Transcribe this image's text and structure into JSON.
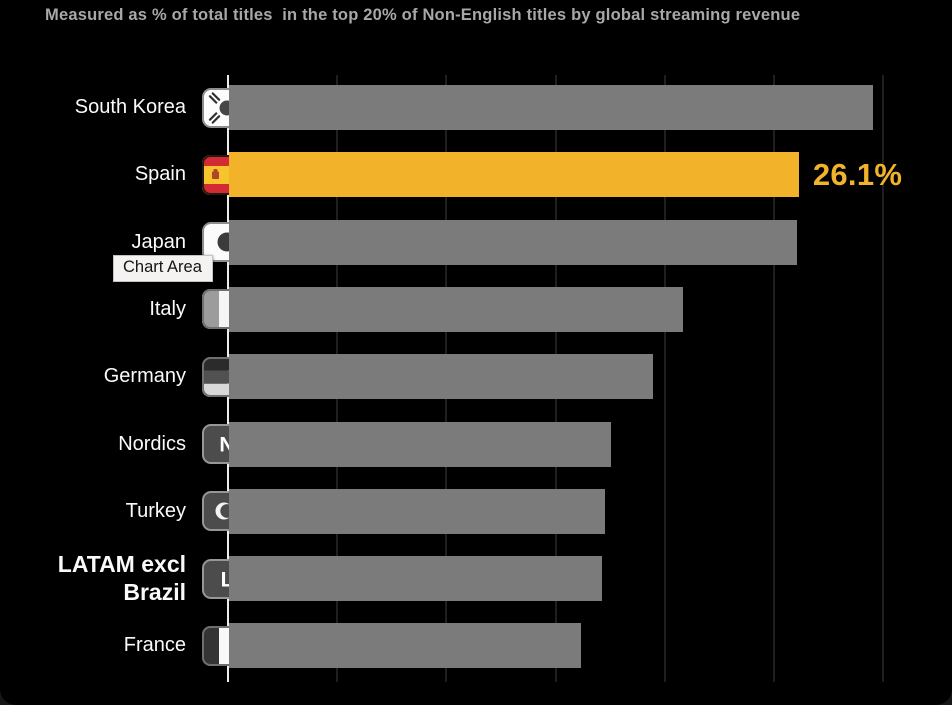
{
  "subtitle": "Measured as % of total titles  in the top 20% of Non-English titles by global streaming revenue",
  "tooltip": {
    "label": "Chart Area"
  },
  "colors": {
    "background": "#000000",
    "bar_default": "#7b7b7b",
    "bar_highlight": "#f2b32b",
    "value_label": "#f2b32b",
    "subtitle_text": "#a8a8a8",
    "label_text": "#fafafa",
    "axis_line": "#ececec",
    "gridline": "#1f1f1f",
    "tooltip_bg": "#f4f3f1",
    "tooltip_text": "#161616"
  },
  "chart_data": {
    "type": "bar",
    "orientation": "horizontal",
    "title": "",
    "subtitle": "Measured as % of total titles  in the top 20% of Non-English titles by global streaming revenue",
    "categories": [
      "South Korea",
      "Spain",
      "Japan",
      "Italy",
      "Germany",
      "Nordics",
      "Turkey",
      "LATAM excl Brazil",
      "France"
    ],
    "values": [
      29.5,
      26.1,
      26.0,
      20.8,
      19.4,
      17.5,
      17.2,
      17.1,
      16.1
    ],
    "value_labels": [
      "",
      "26.1%",
      "",
      "",
      "",
      "",
      "",
      "",
      ""
    ],
    "highlighted_category": "Spain",
    "emphasized_categories": [
      "LATAM excl Brazil"
    ],
    "flags": [
      "flag-south-korea",
      "flag-spain",
      "flag-japan",
      "flag-italy",
      "flag-germany",
      "badge-nordics-n",
      "flag-turkey",
      "badge-latam-l",
      "flag-france"
    ],
    "badge_letters": {
      "badge-nordics-n": "N",
      "badge-latam-l": "L"
    },
    "xlabel": "",
    "ylabel": "",
    "xlim": [
      0,
      30
    ],
    "grid_step": 5,
    "grid": true,
    "legend": false
  }
}
